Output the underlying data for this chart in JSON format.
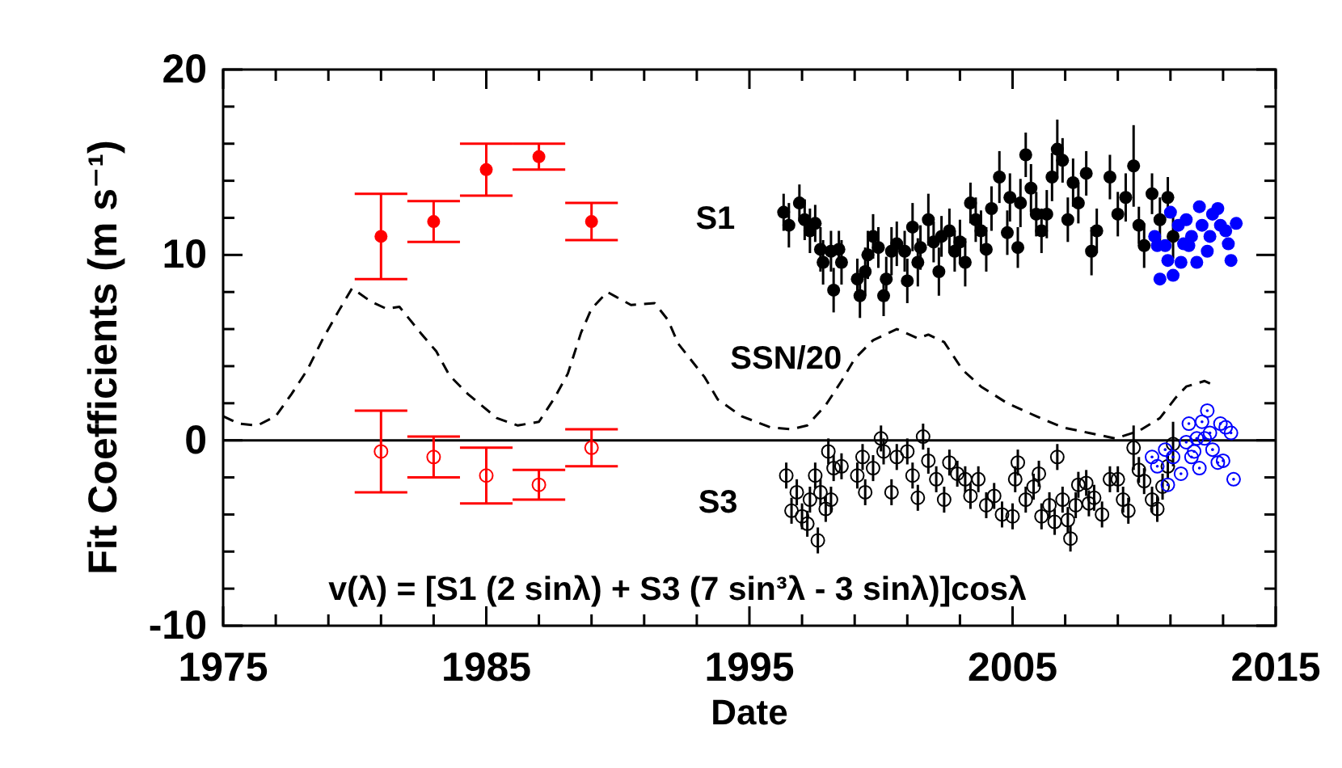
{
  "chart_data": {
    "type": "scatter",
    "xlabel": "Date",
    "ylabel": "Fit Coefficients (m s⁻¹)",
    "xlim": [
      1975,
      2015
    ],
    "xticks": [
      1975,
      {
        "value": 1977,
        "label": null
      },
      {
        "value": 1979,
        "label": null
      },
      {
        "value": 1981,
        "label": null
      },
      {
        "value": 1983,
        "label": null
      },
      1985,
      {
        "value": 1987,
        "label": null
      },
      {
        "value": 1989,
        "label": null
      },
      {
        "value": 1991,
        "label": null
      },
      {
        "value": 1993,
        "label": null
      },
      1995,
      {
        "value": 1997,
        "label": null
      },
      {
        "value": 1999,
        "label": null
      },
      {
        "value": 2001,
        "label": null
      },
      {
        "value": 2003,
        "label": null
      },
      2005,
      {
        "value": 2007,
        "label": null
      },
      {
        "value": 2009,
        "label": null
      },
      {
        "value": 2011,
        "label": null
      },
      {
        "value": 2013,
        "label": null
      },
      2015
    ],
    "ylim": [
      -10,
      20
    ],
    "yticks": [
      -10,
      {
        "value": -8,
        "label": null
      },
      {
        "value": -6,
        "label": null
      },
      {
        "value": -4,
        "label": null
      },
      {
        "value": -2,
        "label": null
      },
      0,
      {
        "value": 2,
        "label": null
      },
      {
        "value": 4,
        "label": null
      },
      {
        "value": 6,
        "label": null
      },
      {
        "value": 8,
        "label": null
      },
      10,
      {
        "value": 12,
        "label": null
      },
      {
        "value": 14,
        "label": null
      },
      {
        "value": 16,
        "label": null
      },
      {
        "value": 18,
        "label": null
      },
      20
    ],
    "ref_lines": [
      {
        "axis": "y",
        "value": 0,
        "color": "#000000"
      }
    ],
    "series": [
      {
        "type": "line",
        "name": "SSN/20",
        "color": "#000000",
        "marker": "none",
        "line_style": "dashed",
        "x": [
          1975.0,
          1975.6,
          1976.3,
          1977.0,
          1977.6,
          1978.2,
          1978.8,
          1979.4,
          1979.9,
          1980.6,
          1981.2,
          1981.7,
          1982.5,
          1983.1,
          1983.6,
          1984.3,
          1985.4,
          1986.2,
          1987.0,
          1987.6,
          1988.1,
          1988.6,
          1989.0,
          1989.6,
          1990.5,
          1991.4,
          1991.9,
          1992.3,
          1993.3,
          1993.8,
          1994.7,
          1995.8,
          1996.6,
          1997.2,
          1997.9,
          1998.5,
          1999.0,
          1999.7,
          2000.6,
          2001.4,
          2001.8,
          2002.4,
          2003.1,
          2003.8,
          2004.8,
          2005.9,
          2006.9,
          2007.9,
          2008.9,
          2009.8,
          2010.6,
          2011.2,
          2011.6,
          2012.3,
          2012.6
        ],
        "values": [
          1.3,
          0.9,
          0.8,
          1.3,
          2.5,
          3.8,
          5.5,
          7.0,
          8.2,
          7.5,
          7.1,
          7.2,
          5.8,
          4.8,
          3.5,
          2.5,
          1.2,
          0.8,
          1.0,
          2.3,
          3.6,
          5.8,
          7.1,
          8.0,
          7.3,
          7.4,
          6.5,
          5.2,
          3.4,
          2.2,
          1.3,
          0.7,
          0.6,
          0.8,
          1.9,
          3.2,
          4.4,
          5.4,
          6.0,
          5.5,
          5.7,
          5.3,
          3.8,
          2.9,
          2.0,
          1.3,
          0.7,
          0.4,
          0.1,
          0.5,
          1.2,
          2.3,
          2.9,
          3.2,
          3.0
        ]
      },
      {
        "color": "#ff0000",
        "marker": "circle",
        "x": [
          1981,
          1983,
          1985,
          1987,
          1989
        ],
        "values": [
          11.0,
          11.8,
          14.6,
          15.3,
          11.8
        ],
        "errors": [
          2.3,
          1.1,
          1.4,
          0.7,
          1.0
        ]
      },
      {
        "color": "#ff0000",
        "marker": "circle-open",
        "x": [
          1981,
          1983,
          1985,
          1987,
          1989
        ],
        "values": [
          -0.6,
          -0.9,
          -1.9,
          -2.4,
          -0.4
        ],
        "errors": [
          2.2,
          1.1,
          1.5,
          0.8,
          1.0
        ]
      },
      {
        "name": "S1",
        "color": "#000000",
        "marker": "circle",
        "x": [
          1996.3,
          1996.5,
          1996.9,
          1997.1,
          1997.3,
          1997.5,
          1997.7,
          1997.8,
          1998.1,
          1998.2,
          1998.4,
          1998.5,
          1999.1,
          1999.2,
          1999.4,
          1999.5,
          1999.7,
          1999.9,
          2000.1,
          2000.2,
          2000.4,
          2000.6,
          2000.9,
          2001.0,
          2001.2,
          2001.4,
          2001.5,
          2001.8,
          2002.0,
          2002.2,
          2002.3,
          2002.6,
          2002.8,
          2003.0,
          2003.2,
          2003.4,
          2003.6,
          2003.8,
          2004.0,
          2004.2,
          2004.5,
          2004.8,
          2004.9,
          2005.2,
          2005.3,
          2005.5,
          2005.7,
          2005.9,
          2006.1,
          2006.3,
          2006.5,
          2006.7,
          2006.9,
          2007.1,
          2007.3,
          2007.5,
          2007.8,
          2008.0,
          2008.2,
          2008.7,
          2009.0,
          2009.3,
          2009.6,
          2009.8,
          2010.0,
          2010.3,
          2010.6,
          2010.9,
          2011.1
        ],
        "values": [
          12.3,
          11.6,
          12.8,
          11.9,
          11.3,
          11.7,
          10.3,
          9.6,
          10.2,
          8.1,
          10.3,
          9.6,
          8.7,
          7.8,
          9.1,
          10.0,
          11.0,
          10.4,
          7.8,
          8.7,
          10.2,
          10.6,
          10.2,
          8.6,
          11.5,
          9.6,
          10.4,
          11.9,
          10.7,
          9.1,
          11.0,
          11.3,
          10.2,
          10.7,
          9.6,
          12.8,
          11.9,
          11.3,
          10.3,
          12.5,
          14.2,
          11.2,
          13.1,
          10.4,
          12.8,
          15.4,
          13.6,
          12.2,
          11.3,
          12.2,
          14.2,
          15.7,
          15.1,
          11.9,
          13.9,
          12.8,
          14.4,
          10.2,
          11.3,
          14.2,
          12.2,
          13.1,
          14.8,
          11.6,
          10.5,
          13.3,
          11.9,
          13.1,
          11.0
        ],
        "errors": [
          1.0,
          1.2,
          1.0,
          1.1,
          1.2,
          1.0,
          1.2,
          1.2,
          1.1,
          1.2,
          1.0,
          1.2,
          1.1,
          1.2,
          1.3,
          1.3,
          1.2,
          1.1,
          1.1,
          1.2,
          1.3,
          1.2,
          1.1,
          1.2,
          1.3,
          1.3,
          1.2,
          1.4,
          1.1,
          1.3,
          1.1,
          1.2,
          1.1,
          1.2,
          1.3,
          1.1,
          1.2,
          1.1,
          1.2,
          1.2,
          1.4,
          1.2,
          1.3,
          1.1,
          1.3,
          1.2,
          1.3,
          1.2,
          1.2,
          1.3,
          1.3,
          1.6,
          1.2,
          1.2,
          1.3,
          1.1,
          1.2,
          1.3,
          1.2,
          1.2,
          1.2,
          1.3,
          2.2,
          1.0,
          1.2,
          1.1,
          1.2,
          1.1,
          1.2
        ]
      },
      {
        "color": "#0000ff",
        "marker": "circle",
        "x": [
          2010.4,
          2010.5,
          2010.6,
          2010.8,
          2010.9,
          2011.0,
          2011.1,
          2011.3,
          2011.4,
          2011.5,
          2011.6,
          2011.7,
          2011.8,
          2012.0,
          2012.1,
          2012.2,
          2012.4,
          2012.5,
          2012.6,
          2012.8,
          2012.9,
          2013.1,
          2013.2,
          2013.3,
          2013.5
        ],
        "values": [
          11.0,
          10.5,
          8.7,
          10.5,
          9.7,
          12.3,
          8.9,
          11.6,
          9.6,
          10.6,
          11.9,
          10.5,
          11.0,
          9.6,
          12.6,
          11.6,
          10.2,
          11.0,
          12.2,
          12.5,
          11.6,
          11.3,
          10.6,
          9.7,
          11.7
        ]
      },
      {
        "name": "S3",
        "color": "#000000",
        "marker": "circle-open",
        "x": [
          1996.4,
          1996.6,
          1996.8,
          1997.0,
          1997.2,
          1997.3,
          1997.5,
          1997.6,
          1997.7,
          1997.9,
          1998.0,
          1998.1,
          1998.2,
          1998.5,
          1999.1,
          1999.3,
          1999.4,
          1999.7,
          2000.0,
          2000.1,
          2000.4,
          2000.6,
          2001.0,
          2001.2,
          2001.4,
          2001.6,
          2001.8,
          2002.1,
          2002.4,
          2002.6,
          2002.9,
          2003.2,
          2003.4,
          2003.7,
          2004.0,
          2004.3,
          2004.6,
          2005.0,
          2005.1,
          2005.2,
          2005.5,
          2005.8,
          2006.0,
          2006.1,
          2006.4,
          2006.6,
          2006.7,
          2006.9,
          2007.1,
          2007.2,
          2007.4,
          2007.5,
          2007.8,
          2007.9,
          2008.1,
          2008.4,
          2008.7,
          2009.0,
          2009.2,
          2009.4,
          2009.6,
          2009.8,
          2010.0,
          2010.3,
          2010.5,
          2010.7,
          2010.9,
          2011.1
        ],
        "values": [
          -1.9,
          -3.8,
          -2.8,
          -4.1,
          -4.5,
          -3.2,
          -1.9,
          -5.4,
          -2.8,
          -3.7,
          -0.6,
          -3.2,
          -1.5,
          -1.4,
          -1.9,
          -0.9,
          -2.8,
          -1.5,
          0.1,
          -0.6,
          -2.8,
          -0.9,
          -0.6,
          -1.9,
          -3.1,
          0.2,
          -1.1,
          -2.1,
          -3.2,
          -1.2,
          -1.8,
          -2.1,
          -3.0,
          -2.1,
          -3.5,
          -3.0,
          -4.0,
          -4.1,
          -2.1,
          -1.2,
          -3.2,
          -2.5,
          -1.8,
          -4.1,
          -3.5,
          -4.4,
          -0.9,
          -3.2,
          -4.3,
          -5.3,
          -3.5,
          -2.4,
          -2.3,
          -3.4,
          -3.1,
          -4.0,
          -2.1,
          -2.1,
          -3.2,
          -3.8,
          -0.4,
          -1.6,
          -2.2,
          -3.2,
          -3.7,
          -2.5,
          -1.4,
          -0.2
        ],
        "errors": [
          0.7,
          0.7,
          0.7,
          0.7,
          0.7,
          0.7,
          0.7,
          0.7,
          0.7,
          0.7,
          0.7,
          0.7,
          0.7,
          0.7,
          0.7,
          0.7,
          0.7,
          0.7,
          0.7,
          0.7,
          0.7,
          0.7,
          0.7,
          0.7,
          0.7,
          0.7,
          0.7,
          0.7,
          0.7,
          0.7,
          0.7,
          0.7,
          0.7,
          0.7,
          0.7,
          0.7,
          0.7,
          0.7,
          0.7,
          0.7,
          0.7,
          0.7,
          0.7,
          0.7,
          0.7,
          0.7,
          0.7,
          0.7,
          0.7,
          0.7,
          0.7,
          0.7,
          0.7,
          0.7,
          0.7,
          0.7,
          0.7,
          0.7,
          0.7,
          0.7,
          1.2,
          0.7,
          0.7,
          0.7,
          0.7,
          0.7,
          0.7,
          1.2
        ]
      },
      {
        "color": "#0000ff",
        "marker": "circle-open-dot",
        "x": [
          2010.3,
          2010.5,
          2010.8,
          2010.9,
          2011.1,
          2011.4,
          2011.6,
          2011.7,
          2011.8,
          2011.9,
          2012.0,
          2012.1,
          2012.2,
          2012.3,
          2012.4,
          2012.5,
          2012.6,
          2012.8,
          2012.9,
          2013.0,
          2013.1,
          2013.3,
          2013.4
        ],
        "values": [
          -0.9,
          -1.4,
          -0.5,
          -2.4,
          -0.9,
          -1.8,
          -0.1,
          0.9,
          -0.9,
          -0.6,
          0.1,
          -1.5,
          1.0,
          0.1,
          1.6,
          0.4,
          -0.5,
          -1.2,
          0.9,
          -1.1,
          0.7,
          0.4,
          -2.1
        ]
      }
    ],
    "annotations": [
      "v(λ) = [S1 (2 sinλ) + S3 (7 sin³λ - 3 sinλ)]cosλ"
    ]
  }
}
